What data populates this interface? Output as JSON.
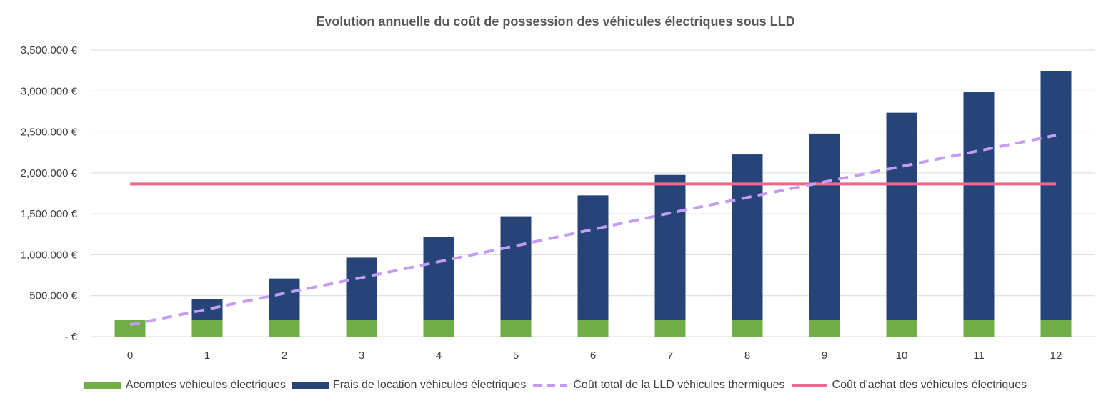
{
  "colors": {
    "acomptes": "#70ad47",
    "frais": "#264478",
    "thermique": "#c59bf5",
    "achat": "#f0688a",
    "grid": "#d9d9d9"
  },
  "chart_data": {
    "type": "bar",
    "title": "Evolution annuelle du coût de possession des véhicules électriques sous LLD",
    "categories": [
      "0",
      "1",
      "2",
      "3",
      "4",
      "5",
      "6",
      "7",
      "8",
      "9",
      "10",
      "11",
      "12"
    ],
    "ylim": [
      0,
      3500000
    ],
    "y_ticks": [
      0,
      500000,
      1000000,
      1500000,
      2000000,
      2500000,
      3000000,
      3500000
    ],
    "y_tick_labels": [
      "-  €",
      "500,000 €",
      "1,000,000 €",
      "1,500,000 €",
      "2,000,000 €",
      "2,500,000 €",
      "3,000,000 €",
      "3,500,000 €"
    ],
    "grid": true,
    "legend_position": "bottom",
    "series": [
      {
        "name": "Acomptes véhicules électriques",
        "kind": "stacked-bar",
        "values": [
          205000,
          205000,
          205000,
          205000,
          205000,
          205000,
          205000,
          205000,
          205000,
          205000,
          205000,
          205000,
          205000
        ]
      },
      {
        "name": "Frais de location véhicules électriques",
        "kind": "stacked-bar",
        "values": [
          0,
          250000,
          505000,
          760000,
          1015000,
          1265000,
          1520000,
          1770000,
          2020000,
          2275000,
          2530000,
          2780000,
          3035000
        ]
      },
      {
        "name": "Coût total de la LLD véhicules thermiques",
        "kind": "dashed-line",
        "values": [
          145000,
          335000,
          530000,
          720000,
          915000,
          1110000,
          1310000,
          1510000,
          1700000,
          1890000,
          2080000,
          2270000,
          2460000
        ]
      },
      {
        "name": "Coût d'achat des véhicules électriques",
        "kind": "line",
        "values": [
          1865000,
          1865000,
          1865000,
          1865000,
          1865000,
          1865000,
          1865000,
          1865000,
          1865000,
          1865000,
          1865000,
          1865000,
          1865000
        ]
      }
    ]
  }
}
